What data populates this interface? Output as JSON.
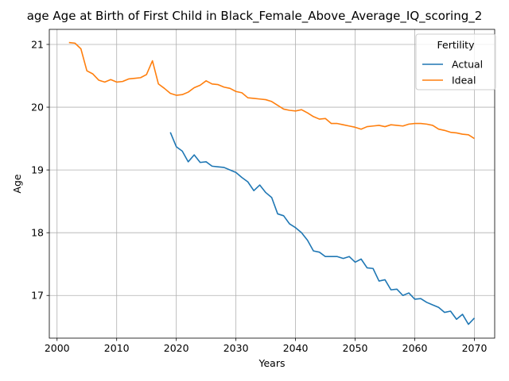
{
  "chart_data": {
    "type": "line",
    "title": "age Age at Birth of First Child in Black_Female_Above_Average_IQ_scoring_2",
    "xlabel": "Years",
    "ylabel": "Age",
    "xlim": [
      1998.7,
      2073.4
    ],
    "ylim": [
      16.32,
      21.24
    ],
    "xticks": [
      2000,
      2010,
      2020,
      2030,
      2040,
      2050,
      2060,
      2070
    ],
    "yticks": [
      17,
      18,
      19,
      20,
      21
    ],
    "grid": true,
    "legend": {
      "title": "Fertility",
      "position": "top-right"
    },
    "series": [
      {
        "name": "Actual",
        "color": "#1f77b4",
        "x": [
          2019,
          2020,
          2021,
          2022,
          2023,
          2024,
          2025,
          2026,
          2027,
          2028,
          2029,
          2030,
          2031,
          2032,
          2033,
          2034,
          2035,
          2036,
          2037,
          2038,
          2039,
          2040,
          2041,
          2042,
          2043,
          2044,
          2045,
          2046,
          2047,
          2048,
          2049,
          2050,
          2051,
          2052,
          2053,
          2054,
          2055,
          2056,
          2057,
          2058,
          2059,
          2060,
          2061,
          2062,
          2063,
          2064,
          2065,
          2066,
          2067,
          2068,
          2069,
          2070
        ],
        "values": [
          19.6,
          19.37,
          19.3,
          19.13,
          19.24,
          19.12,
          19.13,
          19.06,
          19.05,
          19.04,
          19.0,
          18.96,
          18.88,
          18.81,
          18.67,
          18.76,
          18.64,
          18.56,
          18.3,
          18.27,
          18.14,
          18.08,
          18.0,
          17.88,
          17.71,
          17.69,
          17.62,
          17.62,
          17.62,
          17.59,
          17.62,
          17.53,
          17.58,
          17.44,
          17.43,
          17.23,
          17.25,
          17.09,
          17.1,
          17.0,
          17.04,
          16.94,
          16.95,
          16.89,
          16.85,
          16.81,
          16.73,
          16.75,
          16.62,
          16.7,
          16.54,
          16.64
        ]
      },
      {
        "name": "Ideal",
        "color": "#ff7f0e",
        "x": [
          2002,
          2003,
          2004,
          2005,
          2006,
          2007,
          2008,
          2009,
          2010,
          2011,
          2012,
          2013,
          2014,
          2015,
          2016,
          2017,
          2018,
          2019,
          2020,
          2021,
          2022,
          2023,
          2024,
          2025,
          2026,
          2027,
          2028,
          2029,
          2030,
          2031,
          2032,
          2033,
          2034,
          2035,
          2036,
          2037,
          2038,
          2039,
          2040,
          2041,
          2042,
          2043,
          2044,
          2045,
          2046,
          2047,
          2048,
          2049,
          2050,
          2051,
          2052,
          2053,
          2054,
          2055,
          2056,
          2057,
          2058,
          2059,
          2060,
          2061,
          2062,
          2063,
          2064,
          2065,
          2066,
          2067,
          2068,
          2069,
          2070
        ],
        "values": [
          21.03,
          21.02,
          20.93,
          20.58,
          20.53,
          20.43,
          20.4,
          20.44,
          20.4,
          20.41,
          20.45,
          20.46,
          20.47,
          20.52,
          20.74,
          20.37,
          20.3,
          20.22,
          20.19,
          20.2,
          20.24,
          20.31,
          20.35,
          20.42,
          20.37,
          20.36,
          20.32,
          20.3,
          20.25,
          20.23,
          20.15,
          20.14,
          20.13,
          20.12,
          20.09,
          20.03,
          19.97,
          19.95,
          19.94,
          19.96,
          19.91,
          19.85,
          19.81,
          19.82,
          19.74,
          19.74,
          19.72,
          19.7,
          19.68,
          19.65,
          19.69,
          19.7,
          19.71,
          19.69,
          19.72,
          19.71,
          19.7,
          19.73,
          19.74,
          19.74,
          19.73,
          19.71,
          19.65,
          19.63,
          19.6,
          19.59,
          19.57,
          19.56,
          19.5
        ]
      }
    ]
  }
}
